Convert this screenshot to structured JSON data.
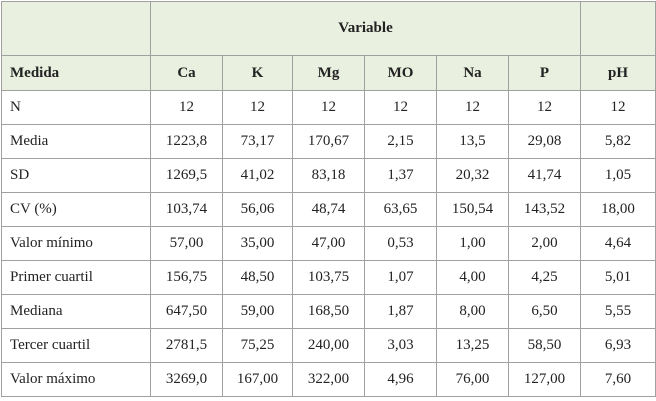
{
  "table": {
    "group_header": "Variable",
    "columns": [
      "Medida",
      "Ca",
      "K",
      "Mg",
      "MO",
      "Na",
      "P",
      "pH"
    ],
    "rows": [
      [
        "N",
        "12",
        "12",
        "12",
        "12",
        "12",
        "12",
        "12"
      ],
      [
        "Media",
        "1223,8",
        "73,17",
        "170,67",
        "2,15",
        "13,5",
        "29,08",
        "5,82"
      ],
      [
        "SD",
        "1269,5",
        "41,02",
        "83,18",
        "1,37",
        "20,32",
        "41,74",
        "1,05"
      ],
      [
        "CV (%)",
        "103,74",
        "56,06",
        "48,74",
        "63,65",
        "150,54",
        "143,52",
        "18,00"
      ],
      [
        "Valor mínimo",
        "57,00",
        "35,00",
        "47,00",
        "0,53",
        "1,00",
        "2,00",
        "4,64"
      ],
      [
        "Primer cuartil",
        "156,75",
        "48,50",
        "103,75",
        "1,07",
        "4,00",
        "4,25",
        "5,01"
      ],
      [
        "Mediana",
        "647,50",
        "59,00",
        "168,50",
        "1,87",
        "8,00",
        "6,50",
        "5,55"
      ],
      [
        "Tercer cuartil",
        "2781,5",
        "75,25",
        "240,00",
        "3,03",
        "13,25",
        "58,50",
        "6,93"
      ],
      [
        "Valor máximo",
        "3269,0",
        "167,00",
        "322,00",
        "4,96",
        "76,00",
        "127,00",
        "7,60"
      ]
    ]
  }
}
